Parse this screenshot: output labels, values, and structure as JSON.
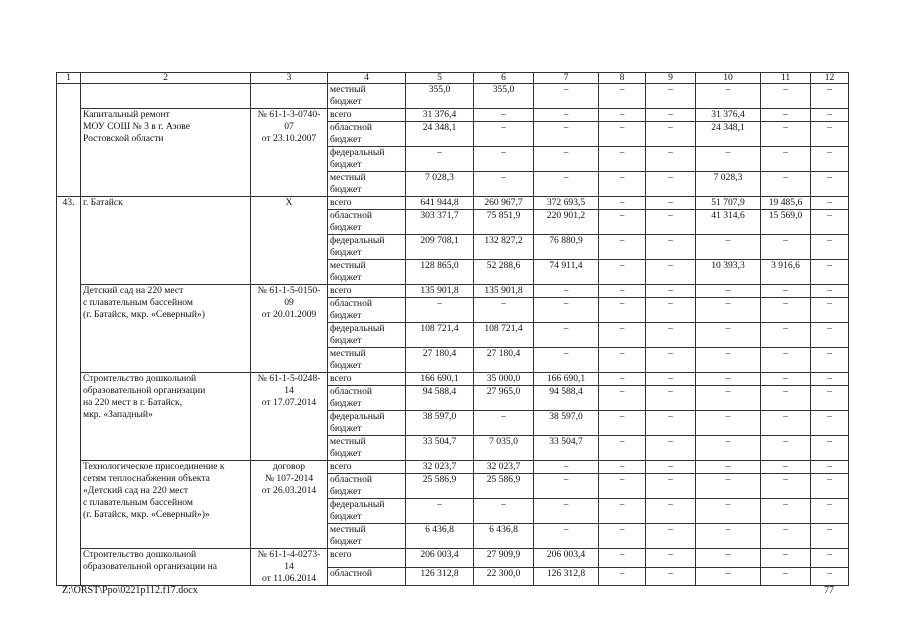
{
  "header": [
    "1",
    "2",
    "3",
    "4",
    "5",
    "6",
    "7",
    "8",
    "9",
    "10",
    "11",
    "12"
  ],
  "groups": [
    {
      "num": "",
      "name": "",
      "doc": "",
      "rows": [
        [
          "местный\nбюджет",
          "355,0",
          "355,0",
          "–",
          "–",
          "–",
          "–",
          "–",
          "–"
        ]
      ]
    },
    {
      "name": "Капитальный ремонт\nМОУ СОШ № 3 в г. Азове\nРостовской области",
      "doc": "№ 61-1-3-0740-07\nот 23.10.2007",
      "rows": [
        [
          "всего",
          "31 376,4",
          "–",
          "–",
          "–",
          "–",
          "31 376,4",
          "–",
          "–"
        ],
        [
          "областной\nбюджет",
          "24 348,1",
          "–",
          "–",
          "–",
          "–",
          "24 348,1",
          "–",
          "–"
        ],
        [
          "федеральный\nбюджет",
          "–",
          "–",
          "–",
          "–",
          "–",
          "–",
          "–",
          "–"
        ],
        [
          "местный\nбюджет",
          "7 028,3",
          "–",
          "–",
          "–",
          "–",
          "7 028,3",
          "–",
          "–"
        ]
      ]
    },
    {
      "num": "43.",
      "name": "г. Батайск",
      "doc": "Х",
      "rows": [
        [
          "всего",
          "641 944,8",
          "260 967,7",
          "372 693,5",
          "–",
          "–",
          "51 707,9",
          "19 485,6",
          "–"
        ],
        [
          "областной\nбюджет",
          "303 371,7",
          "75 851,9",
          "220 901,2",
          "–",
          "–",
          "41 314,6",
          "15 569,0",
          "–"
        ],
        [
          "федеральный\nбюджет",
          "209 708,1",
          "132 827,2",
          "76 880,9",
          "–",
          "–",
          "–",
          "–",
          "–"
        ],
        [
          "местный\nбюджет",
          "128 865,0",
          "52 288,6",
          "74 911,4",
          "–",
          "–",
          "10 393,3",
          "3 916,6",
          "–"
        ]
      ]
    },
    {
      "name": "Детский сад на 220 мест\nс плавательным бассейном\n(г. Батайск, мкр. «Северный»)",
      "doc": "№ 61-1-5-0150-09\nот 20.01.2009",
      "rows": [
        [
          "всего",
          "135 901,8",
          "135 901,8",
          "–",
          "–",
          "–",
          "–",
          "–",
          "–"
        ],
        [
          "областной\nбюджет",
          "–",
          "–",
          "–",
          "–",
          "–",
          "–",
          "–",
          "–"
        ],
        [
          "федеральный\nбюджет",
          "108 721,4",
          "108 721,4",
          "–",
          "–",
          "–",
          "–",
          "–",
          "–"
        ],
        [
          "местный\nбюджет",
          "27 180,4",
          "27 180,4",
          "–",
          "–",
          "–",
          "–",
          "–",
          "–"
        ]
      ]
    },
    {
      "name": "Строительство дошкольной\nобразовательной организации\nна 220 мест в г. Батайск,\nмкр. «Западный»",
      "doc": "№ 61-1-5-0248-14\nот 17.07.2014",
      "rows": [
        [
          "всего",
          "166 690,1",
          "35 000,0",
          "166 690,1",
          "–",
          "–",
          "–",
          "–",
          "–"
        ],
        [
          "областной\nбюджет",
          "94 588,4",
          "27 965,0",
          "94 588,4",
          "–",
          "–",
          "–",
          "–",
          "–"
        ],
        [
          "федеральный\nбюджет",
          "38 597,0",
          "–",
          "38 597,0",
          "–",
          "–",
          "–",
          "–",
          "–"
        ],
        [
          "местный\nбюджет",
          "33 504,7",
          "7 035,0",
          "33 504,7",
          "–",
          "–",
          "–",
          "–",
          "–"
        ]
      ]
    },
    {
      "name": "Технологическое присоединение к\nсетям теплоснабжения объекта\n«Детский сад на 220 мест\nс плавательным бассейном\n(г. Батайск, мкр. «Северный»)»",
      "doc": "договор\n№ 107-2014\nот 26.03.2014",
      "rows": [
        [
          "всего",
          "32 023,7",
          "32 023,7",
          "–",
          "–",
          "–",
          "–",
          "–",
          "–"
        ],
        [
          "областной\nбюджет",
          "25 586,9",
          "25 586,9",
          "–",
          "–",
          "–",
          "–",
          "–",
          "–"
        ],
        [
          "федеральный\nбюджет",
          "–",
          "–",
          "–",
          "–",
          "–",
          "–",
          "–",
          "–"
        ],
        [
          "местный\nбюджет",
          "6 436,8",
          "6 436,8",
          "–",
          "–",
          "–",
          "–",
          "–",
          "–"
        ]
      ]
    },
    {
      "name": "Строительство дошкольной\nобразовательной организации на",
      "doc": "№ 61-1-4-0273-14\nот 11.06.2014",
      "rows": [
        [
          "всего",
          "206 003,4",
          "27 909,9",
          "206 003,4",
          "–",
          "–",
          "–",
          "–",
          "–"
        ],
        [
          "областной",
          "126 312,8",
          "22 300,0",
          "126 312,8",
          "–",
          "–",
          "–",
          "–",
          "–"
        ]
      ]
    }
  ],
  "footer": {
    "path": "Z:\\ORST\\Ppo\\0221p112.f17.docx",
    "page": "77"
  }
}
